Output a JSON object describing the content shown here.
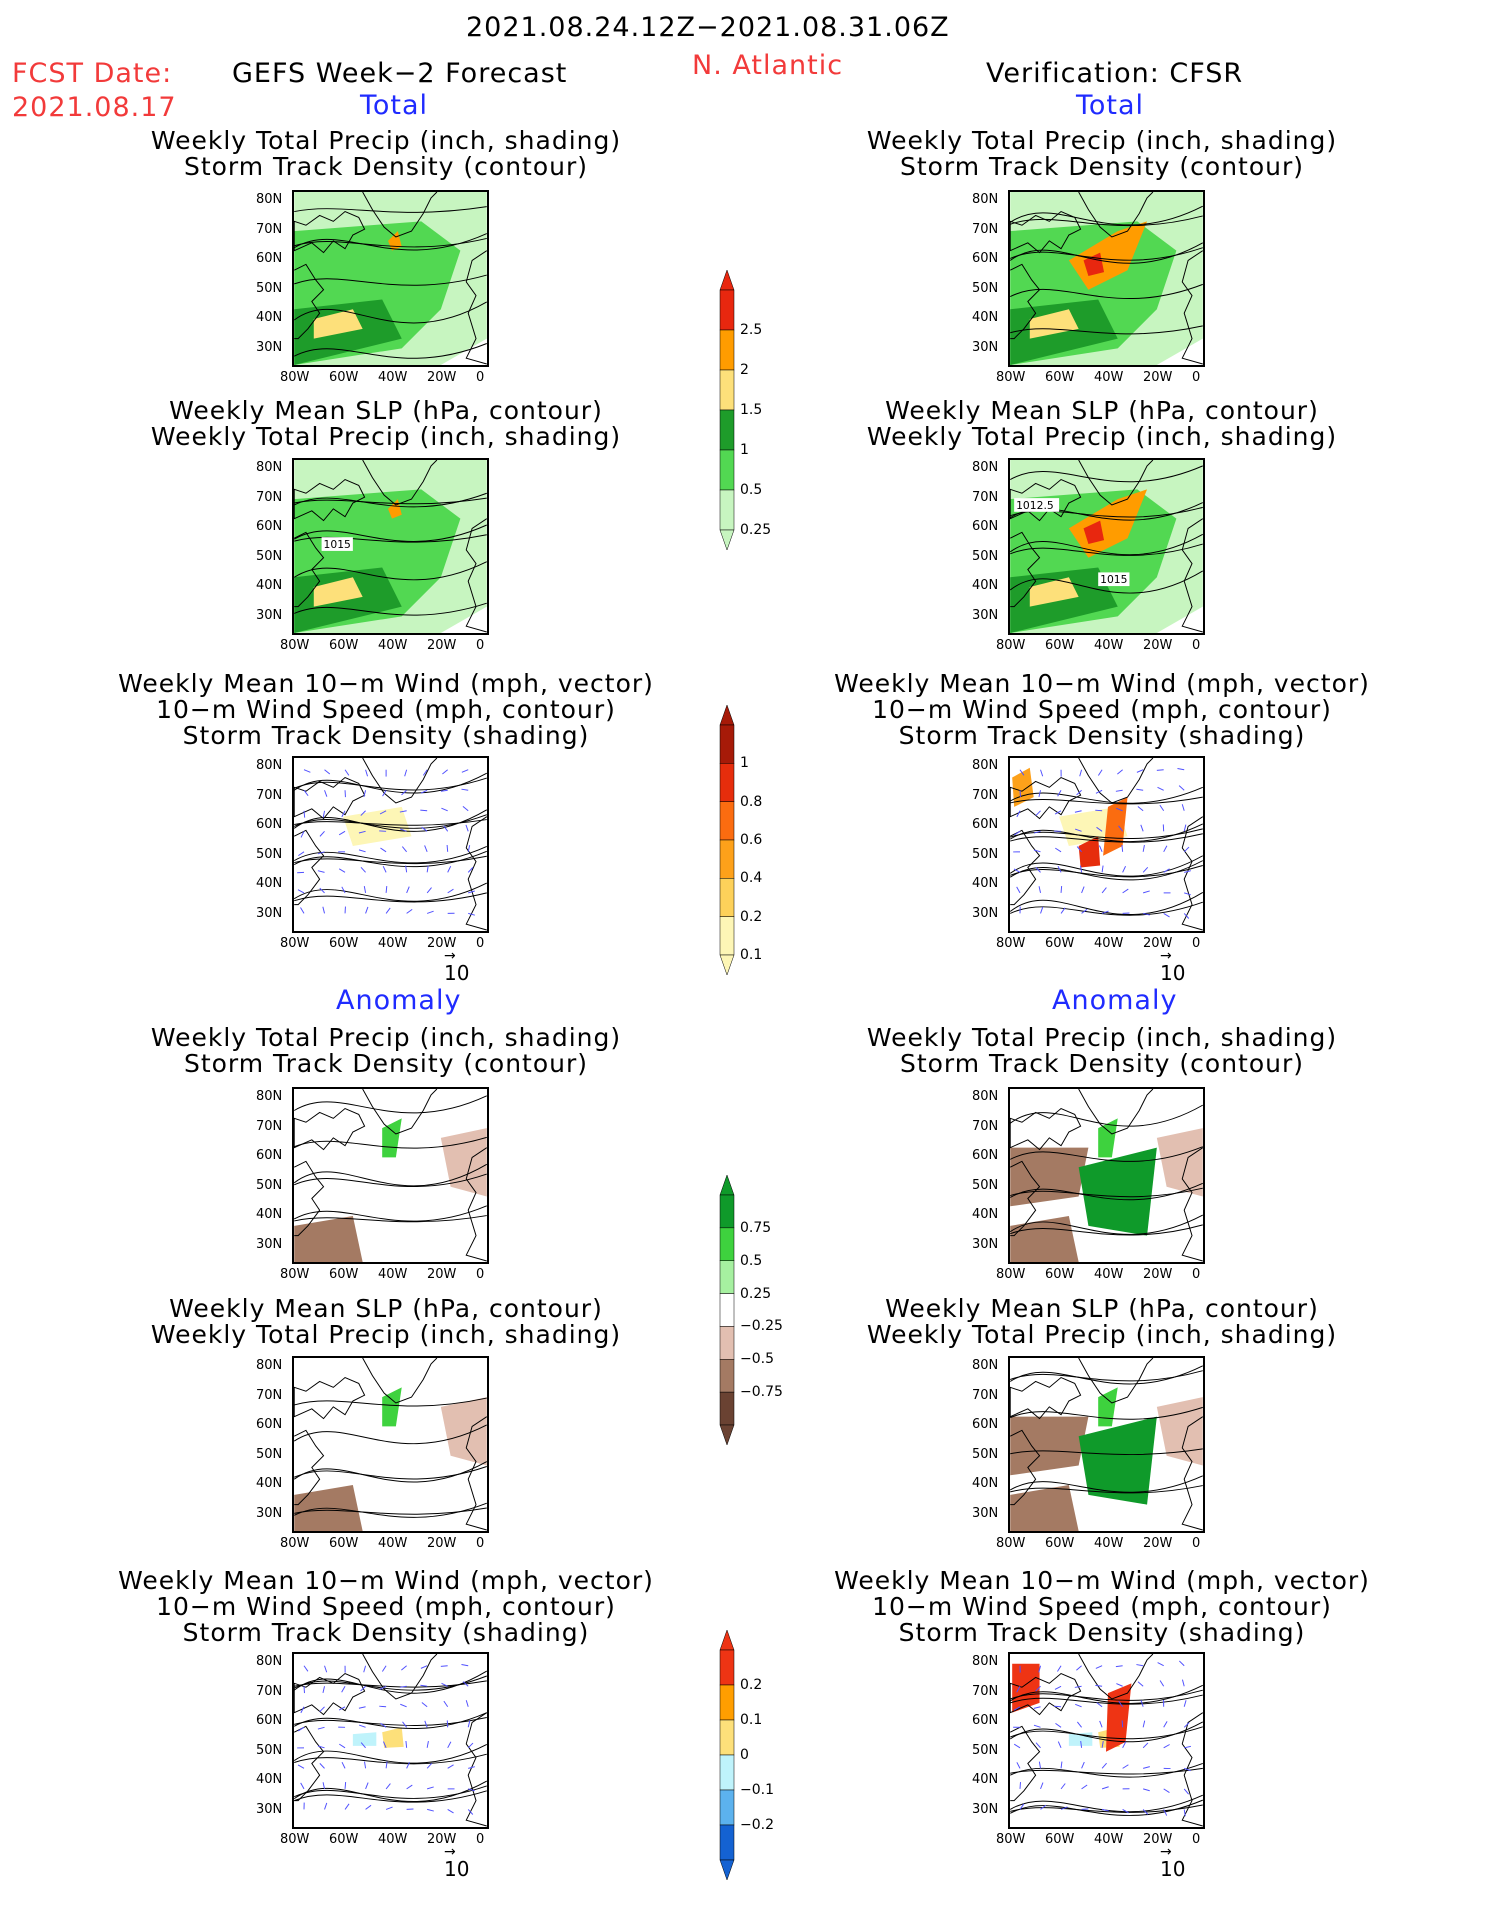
{
  "header": {
    "date_range": "2021.08.24.12Z−2021.08.31.06Z",
    "fcst_label": "FCST Date:",
    "fcst_date": "2021.08.17",
    "left_title": "GEFS Week−2 Forecast",
    "region": "N. Atlantic",
    "right_title": "Verification: CFSR"
  },
  "sections": {
    "total": "Total",
    "anomaly": "Anomaly"
  },
  "panel_titles": {
    "precip_track": [
      "Weekly Total Precip (inch, shading)",
      "Storm Track Density (contour)"
    ],
    "slp_precip": [
      "Weekly Mean SLP (hPa, contour)",
      "Weekly Total Precip (inch, shading)"
    ],
    "wind": [
      "Weekly Mean 10−m Wind (mph, vector)",
      "10−m Wind Speed (mph, contour)",
      "Storm Track Density (shading)"
    ]
  },
  "axes": {
    "lat": [
      "80N",
      "70N",
      "60N",
      "50N",
      "40N",
      "30N"
    ],
    "lon": [
      "80W",
      "60W",
      "40W",
      "20W",
      "0"
    ]
  },
  "contour_labels": {
    "fcst_slp": "1015",
    "obs_slp_a": "1012.5",
    "obs_slp_b": "1015"
  },
  "vector_ref": "10",
  "colorbars": {
    "precip_total": {
      "labels": [
        "2.5",
        "2",
        "1.5",
        "1",
        "0.5",
        "0.25"
      ],
      "colors": [
        "#e8270f",
        "#ff9c00",
        "#fde07a",
        "#1e9c2a",
        "#52d852",
        "#c7f5c0"
      ]
    },
    "track_total": {
      "labels": [
        "1",
        "0.8",
        "0.6",
        "0.4",
        "0.2",
        "0.1"
      ],
      "colors": [
        "#a61a08",
        "#e62d0c",
        "#fb6c10",
        "#fda11a",
        "#fdd15a",
        "#fdf6b6"
      ]
    },
    "precip_anom": {
      "labels": [
        "0.75",
        "0.5",
        "0.25",
        "−0.25",
        "−0.5",
        "−0.75"
      ],
      "colors": [
        "#0f9a2a",
        "#3ed23e",
        "#a6f0a0",
        "#ffffff",
        "#e2bfb1",
        "#a47a63",
        "#6a4232"
      ]
    },
    "track_anom": {
      "labels": [
        "0.2",
        "0.1",
        "0",
        "−0.1",
        "−0.2"
      ],
      "colors": [
        "#ee3414",
        "#ff9e00",
        "#fde07a",
        "#bff3fb",
        "#5cb2ee",
        "#1462d2"
      ]
    }
  },
  "colors": {
    "red_text": "#f23a3a",
    "blue_text": "#1f2bff"
  }
}
